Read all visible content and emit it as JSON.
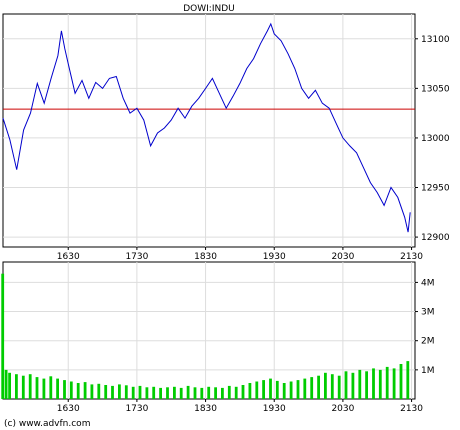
{
  "chart_data": [
    {
      "type": "line",
      "title": "DOWI:INDU",
      "xlabel": "",
      "ylabel": "",
      "x_range": [
        1535,
        2135
      ],
      "ylim": [
        12890,
        13125
      ],
      "x_ticks": [
        {
          "value": 1630,
          "label": "1630"
        },
        {
          "value": 1730,
          "label": "1730"
        },
        {
          "value": 1830,
          "label": "1830"
        },
        {
          "value": 1930,
          "label": "1930"
        },
        {
          "value": 2030,
          "label": "2030"
        },
        {
          "value": 2130,
          "label": "2130"
        }
      ],
      "y_ticks": [
        {
          "value": 13100,
          "label": "13100"
        },
        {
          "value": 13050,
          "label": "13050"
        },
        {
          "value": 13000,
          "label": "13000"
        },
        {
          "value": 12950,
          "label": "12950"
        },
        {
          "value": 12900,
          "label": "12900"
        }
      ],
      "grid": true,
      "line_color": "#0000cc",
      "reference_line": {
        "value": 13029,
        "color": "#cc0000"
      },
      "series": [
        {
          "x": [
            1535,
            1545,
            1555,
            1565,
            1575,
            1585,
            1595,
            1605,
            1615,
            1620,
            1625,
            1630,
            1640,
            1650,
            1660,
            1670,
            1680,
            1690,
            1700,
            1710,
            1720,
            1730,
            1740,
            1750,
            1760,
            1770,
            1780,
            1790,
            1800,
            1810,
            1820,
            1830,
            1840,
            1850,
            1860,
            1870,
            1880,
            1890,
            1900,
            1910,
            1920,
            1925,
            1930,
            1940,
            1950,
            1960,
            1970,
            1980,
            1990,
            2000,
            2010,
            2020,
            2030,
            2040,
            2050,
            2060,
            2070,
            2080,
            2090,
            2100,
            2110,
            2120,
            2125,
            2128
          ],
          "values": [
            13020,
            12998,
            12968,
            13008,
            13025,
            13055,
            13035,
            13060,
            13083,
            13108,
            13090,
            13075,
            13045,
            13058,
            13040,
            13056,
            13050,
            13060,
            13062,
            13040,
            13025,
            13030,
            13018,
            12992,
            13005,
            13010,
            13018,
            13030,
            13020,
            13032,
            13040,
            13050,
            13060,
            13045,
            13030,
            13042,
            13055,
            13070,
            13080,
            13095,
            13108,
            13115,
            13105,
            13098,
            13085,
            13070,
            13050,
            13040,
            13048,
            13035,
            13030,
            13015,
            13000,
            12992,
            12985,
            12970,
            12955,
            12945,
            12932,
            12950,
            12940,
            12920,
            12905,
            12925
          ]
        }
      ]
    },
    {
      "type": "bar",
      "title": "",
      "xlabel": "",
      "ylabel": "",
      "x_range": [
        1535,
        2135
      ],
      "ylim": [
        0,
        4700000
      ],
      "x_ticks": [
        {
          "value": 1630,
          "label": "1630"
        },
        {
          "value": 1730,
          "label": "1730"
        },
        {
          "value": 1830,
          "label": "1830"
        },
        {
          "value": 1930,
          "label": "1930"
        },
        {
          "value": 2030,
          "label": "2030"
        },
        {
          "value": 2130,
          "label": "2130"
        }
      ],
      "y_ticks": [
        {
          "value": 4000000,
          "label": "4M"
        },
        {
          "value": 3000000,
          "label": "3M"
        },
        {
          "value": 2000000,
          "label": "2M"
        },
        {
          "value": 1000000,
          "label": "1M"
        }
      ],
      "grid": true,
      "bar_color": "#00cc00",
      "x": [
        1535,
        1540,
        1545,
        1555,
        1565,
        1575,
        1585,
        1595,
        1605,
        1615,
        1625,
        1635,
        1645,
        1655,
        1665,
        1675,
        1685,
        1695,
        1705,
        1715,
        1725,
        1735,
        1745,
        1755,
        1765,
        1775,
        1785,
        1795,
        1805,
        1815,
        1825,
        1835,
        1845,
        1855,
        1865,
        1875,
        1885,
        1895,
        1905,
        1915,
        1925,
        1935,
        1945,
        1955,
        1965,
        1975,
        1985,
        1995,
        2005,
        2015,
        2025,
        2035,
        2045,
        2055,
        2065,
        2075,
        2085,
        2095,
        2105,
        2115,
        2125
      ],
      "values": [
        4300000,
        1000000,
        900000,
        850000,
        800000,
        850000,
        750000,
        700000,
        780000,
        700000,
        650000,
        600000,
        550000,
        580000,
        500000,
        520000,
        480000,
        450000,
        500000,
        470000,
        420000,
        450000,
        400000,
        420000,
        380000,
        400000,
        420000,
        380000,
        450000,
        400000,
        380000,
        420000,
        400000,
        380000,
        450000,
        420000,
        480000,
        550000,
        600000,
        650000,
        700000,
        620000,
        550000,
        600000,
        650000,
        700000,
        750000,
        800000,
        900000,
        850000,
        800000,
        950000,
        900000,
        1000000,
        950000,
        1050000,
        1000000,
        1100000,
        1050000,
        1200000,
        1300000
      ]
    }
  ],
  "source_credit": "(c) www.advfn.com"
}
